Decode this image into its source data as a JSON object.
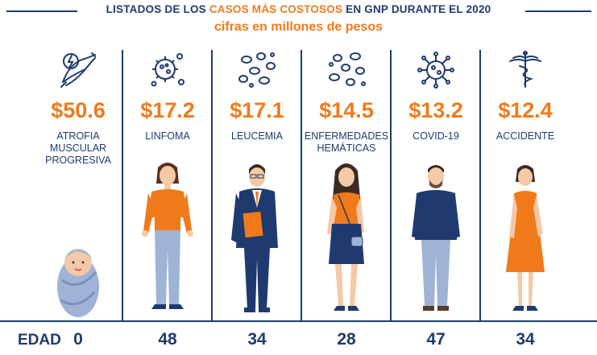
{
  "header": {
    "title_pre": "LISTADOS DE LOS",
    "title_highlight": "CASOS MÁS COSTOSOS",
    "title_post": "EN GNP DURANTE EL 2020",
    "subtitle": "cifras en millones de pesos"
  },
  "colors": {
    "navy": "#1f3a6e",
    "orange": "#f07a1a"
  },
  "edad_label": "EDAD",
  "cases": [
    {
      "amount": "$50.6",
      "disease_lines": [
        "ATROFIA",
        "MUSCULAR",
        "PROGRESIVA"
      ],
      "age": "0",
      "icon": "muscle-bolt-icon",
      "figure": "baby"
    },
    {
      "amount": "$17.2",
      "disease_lines": [
        "LINFOMA"
      ],
      "age": "48",
      "icon": "virus-cells-icon",
      "figure": "woman"
    },
    {
      "amount": "$17.1",
      "disease_lines": [
        "LEUCEMIA"
      ],
      "age": "34",
      "icon": "blood-cells-icon",
      "figure": "man-suit"
    },
    {
      "amount": "$14.5",
      "disease_lines": [
        "ENFERMEDADES",
        "HEMÁTICAS"
      ],
      "age": "28",
      "icon": "blood-cells-icon",
      "figure": "young-woman"
    },
    {
      "amount": "$13.2",
      "disease_lines": [
        "COVID-19"
      ],
      "age": "47",
      "icon": "coronavirus-icon",
      "figure": "man-casual"
    },
    {
      "amount": "$12.4",
      "disease_lines": [
        "ACCIDENTE"
      ],
      "age": "34",
      "icon": "caduceus-icon",
      "figure": "woman-dress"
    }
  ]
}
